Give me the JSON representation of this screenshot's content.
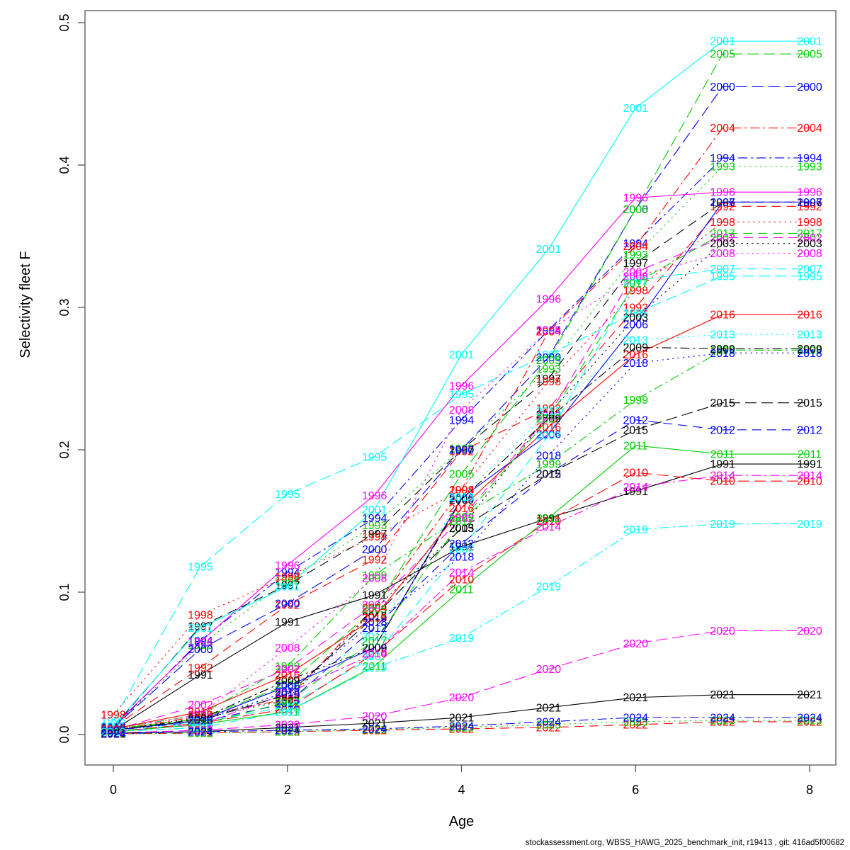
{
  "footer": "stockassessment.org, WBSS_HAWG_2025_benchmark_init, r19413 , git: 416ad5f00682",
  "axes": {
    "xlabel": "Age",
    "ylabel": "Selectivity fleet F",
    "xticks": [
      0,
      2,
      4,
      6,
      8
    ],
    "yticks": [
      "0.0",
      "0.1",
      "0.2",
      "0.3",
      "0.4",
      "0.5"
    ]
  },
  "chart_data": {
    "type": "line",
    "title": "",
    "xlabel": "Age",
    "ylabel": "Selectivity fleet F",
    "xlim": [
      0,
      8
    ],
    "ylim": [
      0.0,
      0.5
    ],
    "grid": false,
    "legend": "labels-on-lines",
    "x": [
      0,
      1,
      2,
      3,
      4,
      5,
      6,
      7,
      8
    ],
    "series": [
      {
        "name": "1991",
        "color": "#000000",
        "dash": "solid",
        "values": [
          0.003,
          0.042,
          0.079,
          0.098,
          0.132,
          0.152,
          0.171,
          0.19,
          0.19
        ]
      },
      {
        "name": "1992",
        "color": "#FF0000",
        "dash": "dashed",
        "values": [
          0.005,
          0.047,
          0.091,
          0.123,
          0.199,
          0.229,
          0.3,
          0.371,
          0.371
        ]
      },
      {
        "name": "1993",
        "color": "#00CD00",
        "dash": "dotted",
        "values": [
          0.005,
          0.063,
          0.108,
          0.147,
          0.201,
          0.257,
          0.337,
          0.399,
          0.399
        ]
      },
      {
        "name": "1994",
        "color": "#0000FF",
        "dash": "dotdash",
        "values": [
          0.005,
          0.066,
          0.114,
          0.152,
          0.221,
          0.284,
          0.345,
          0.405,
          0.405
        ]
      },
      {
        "name": "1995",
        "color": "#00FFFF",
        "dash": "longdash",
        "values": [
          0.01,
          0.118,
          0.169,
          0.195,
          0.239,
          0.267,
          0.296,
          0.322,
          0.322
        ]
      },
      {
        "name": "1996",
        "color": "#FF00FF",
        "dash": "solid",
        "values": [
          0.006,
          0.065,
          0.119,
          0.168,
          0.245,
          0.306,
          0.377,
          0.381,
          0.381
        ]
      },
      {
        "name": "1997",
        "color": "#000000",
        "dash": "dashed",
        "values": [
          0.005,
          0.076,
          0.105,
          0.141,
          0.2,
          0.25,
          0.331,
          0.374,
          0.374
        ]
      },
      {
        "name": "1998",
        "color": "#FF0000",
        "dash": "dotted",
        "values": [
          0.014,
          0.084,
          0.111,
          0.139,
          0.172,
          0.248,
          0.312,
          0.36,
          0.36
        ]
      },
      {
        "name": "1999",
        "color": "#00CD00",
        "dash": "dotdash",
        "values": [
          0.004,
          0.014,
          0.048,
          0.112,
          0.153,
          0.19,
          0.235,
          0.27,
          0.27
        ]
      },
      {
        "name": "2000",
        "color": "#0000FF",
        "dash": "longdash",
        "values": [
          0.005,
          0.06,
          0.092,
          0.13,
          0.2,
          0.265,
          0.369,
          0.455,
          0.455
        ]
      },
      {
        "name": "2001",
        "color": "#00FFFF",
        "dash": "solid",
        "values": [
          0.006,
          0.075,
          0.104,
          0.158,
          0.267,
          0.341,
          0.44,
          0.487,
          0.487
        ]
      },
      {
        "name": "2002",
        "color": "#FF00FF",
        "dash": "dashed",
        "values": [
          0.003,
          0.021,
          0.046,
          0.091,
          0.152,
          0.224,
          0.325,
          0.349,
          0.349
        ]
      },
      {
        "name": "2003",
        "color": "#000000",
        "dash": "dotted",
        "values": [
          0.003,
          0.012,
          0.024,
          0.088,
          0.145,
          0.225,
          0.293,
          0.345,
          0.345
        ]
      },
      {
        "name": "2004",
        "color": "#FF0000",
        "dash": "dotdash",
        "values": [
          0.003,
          0.013,
          0.025,
          0.089,
          0.172,
          0.283,
          0.343,
          0.426,
          0.426
        ]
      },
      {
        "name": "2005",
        "color": "#00CD00",
        "dash": "longdash",
        "values": [
          0.004,
          0.011,
          0.035,
          0.088,
          0.183,
          0.263,
          0.369,
          0.478,
          0.478
        ]
      },
      {
        "name": "2006",
        "color": "#0000FF",
        "dash": "solid",
        "values": [
          0.003,
          0.01,
          0.034,
          0.061,
          0.166,
          0.211,
          0.288,
          0.374,
          0.374
        ]
      },
      {
        "name": "2007",
        "color": "#00FFFF",
        "dash": "dashed",
        "values": [
          0.002,
          0.008,
          0.02,
          0.055,
          0.13,
          0.21,
          0.319,
          0.327,
          0.327
        ]
      },
      {
        "name": "2008",
        "color": "#FF00FF",
        "dash": "dotted",
        "values": [
          0.004,
          0.014,
          0.061,
          0.11,
          0.228,
          0.284,
          0.322,
          0.338,
          0.338
        ]
      },
      {
        "name": "2009",
        "color": "#000000",
        "dash": "dotdash",
        "values": [
          0.003,
          0.011,
          0.038,
          0.061,
          0.165,
          0.222,
          0.272,
          0.271,
          0.271
        ]
      },
      {
        "name": "2010",
        "color": "#FF0000",
        "dash": "longdash",
        "values": [
          0.002,
          0.008,
          0.018,
          0.057,
          0.109,
          0.15,
          0.184,
          0.178,
          0.178
        ]
      },
      {
        "name": "2011",
        "color": "#00CD00",
        "dash": "solid",
        "values": [
          0.002,
          0.007,
          0.016,
          0.048,
          0.102,
          0.152,
          0.203,
          0.197,
          0.197
        ]
      },
      {
        "name": "2012",
        "color": "#0000FF",
        "dash": "dashed",
        "values": [
          0.003,
          0.009,
          0.022,
          0.075,
          0.134,
          0.183,
          0.221,
          0.214,
          0.214
        ]
      },
      {
        "name": "2013",
        "color": "#00FFFF",
        "dash": "dotted",
        "values": [
          0.003,
          0.009,
          0.03,
          0.069,
          0.167,
          0.227,
          0.277,
          0.281,
          0.281
        ]
      },
      {
        "name": "2014",
        "color": "#FF00FF",
        "dash": "dotdash",
        "values": [
          0.002,
          0.007,
          0.029,
          0.057,
          0.114,
          0.146,
          0.174,
          0.182,
          0.182
        ]
      },
      {
        "name": "2015",
        "color": "#000000",
        "dash": "longdash",
        "values": [
          0.003,
          0.01,
          0.028,
          0.083,
          0.145,
          0.183,
          0.214,
          0.233,
          0.233
        ]
      },
      {
        "name": "2016",
        "color": "#FF0000",
        "dash": "solid",
        "values": [
          0.004,
          0.016,
          0.042,
          0.082,
          0.159,
          0.216,
          0.267,
          0.295,
          0.295
        ]
      },
      {
        "name": "2017",
        "color": "#00CD00",
        "dash": "dashed",
        "values": [
          0.002,
          0.007,
          0.023,
          0.066,
          0.15,
          0.222,
          0.317,
          0.352,
          0.352
        ]
      },
      {
        "name": "2018",
        "color": "#0000FF",
        "dash": "dotted",
        "values": [
          0.003,
          0.01,
          0.03,
          0.079,
          0.125,
          0.196,
          0.261,
          0.268,
          0.268
        ]
      },
      {
        "name": "2019",
        "color": "#00FFFF",
        "dash": "dotdash",
        "values": [
          0.002,
          0.005,
          0.016,
          0.047,
          0.068,
          0.104,
          0.144,
          0.148,
          0.148
        ]
      },
      {
        "name": "2020",
        "color": "#FF00FF",
        "dash": "longdash",
        "values": [
          0.001,
          0.003,
          0.007,
          0.013,
          0.026,
          0.046,
          0.064,
          0.073,
          0.073
        ]
      },
      {
        "name": "2021",
        "color": "#000000",
        "dash": "solid",
        "values": [
          0.001,
          0.002,
          0.005,
          0.008,
          0.012,
          0.019,
          0.026,
          0.028,
          0.028
        ]
      },
      {
        "name": "2022",
        "color": "#FF0000",
        "dash": "dashed",
        "values": [
          0.0005,
          0.001,
          0.002,
          0.003,
          0.004,
          0.005,
          0.007,
          0.009,
          0.009
        ]
      },
      {
        "name": "2023",
        "color": "#00CD00",
        "dash": "dotted",
        "values": [
          0.0005,
          0.001,
          0.002,
          0.0035,
          0.005,
          0.007,
          0.009,
          0.01,
          0.01
        ]
      },
      {
        "name": "2024",
        "color": "#0000FF",
        "dash": "dotdash",
        "values": [
          0.0005,
          0.002,
          0.003,
          0.004,
          0.006,
          0.009,
          0.012,
          0.012,
          0.012
        ]
      }
    ]
  }
}
